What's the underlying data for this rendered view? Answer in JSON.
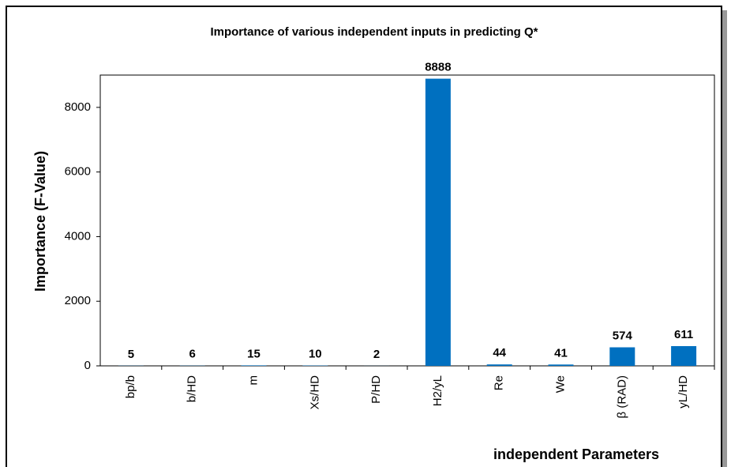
{
  "chart_data": {
    "type": "bar",
    "title": "Importance of various independent inputs in predicting Q*",
    "x_label": "independent Parameters",
    "y_label": "Importance (F-Value)",
    "categories": [
      "bp/b",
      "b/HD",
      "m",
      "Xs/HD",
      "P/HD",
      "H2/yL",
      "Re",
      "We",
      "β (RAD)",
      "yL/HD"
    ],
    "values": [
      5,
      6,
      15,
      10,
      2,
      8888,
      44,
      41,
      574,
      611
    ],
    "color": "#0070c0",
    "ylim": [
      0,
      9000
    ],
    "yticks": [
      0,
      2000,
      4000,
      6000,
      8000
    ],
    "grid": false
  }
}
